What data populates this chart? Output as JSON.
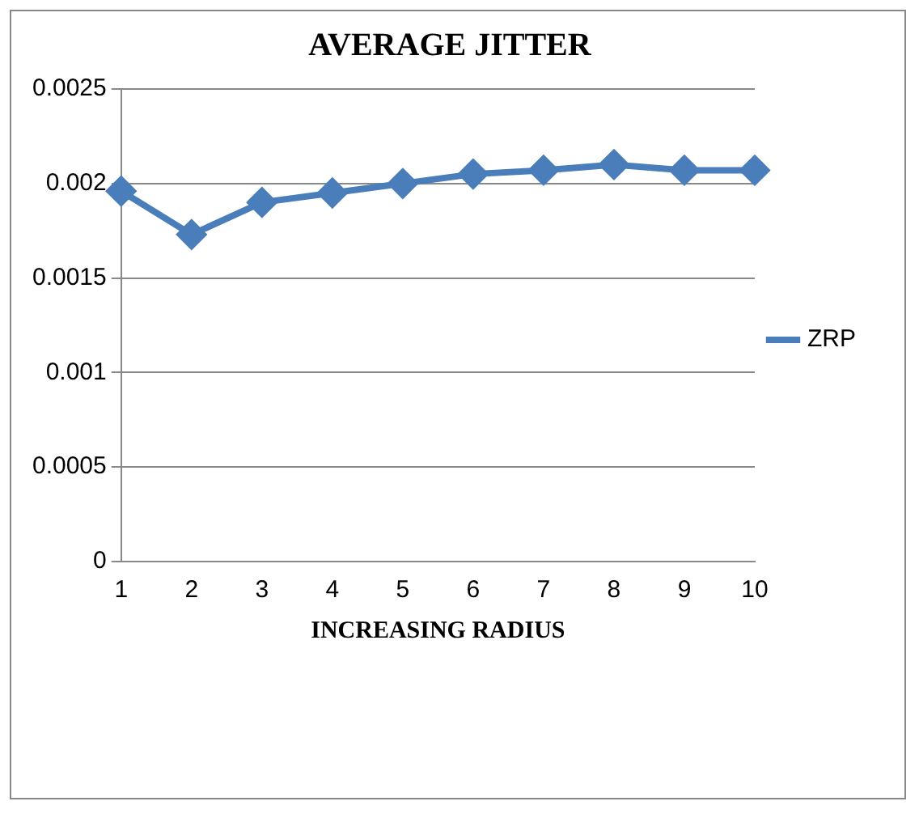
{
  "chart_data": {
    "type": "line",
    "title": "AVERAGE JITTER",
    "xlabel": "INCREASING RADIUS",
    "categories": [
      "1",
      "2",
      "3",
      "4",
      "5",
      "6",
      "7",
      "8",
      "9",
      "10"
    ],
    "series": [
      {
        "name": "ZRP",
        "color": "#4a7ebb",
        "values": [
          0.00196,
          0.00173,
          0.0019,
          0.00195,
          0.002,
          0.00205,
          0.00207,
          0.0021,
          0.00207,
          0.00207
        ]
      }
    ],
    "ylim": [
      0,
      0.0025
    ],
    "yticks": [
      0,
      0.0005,
      0.001,
      0.0015,
      0.002,
      0.0025
    ],
    "grid": "y",
    "legend": "right",
    "marker": "diamond",
    "line_style": "solid"
  }
}
